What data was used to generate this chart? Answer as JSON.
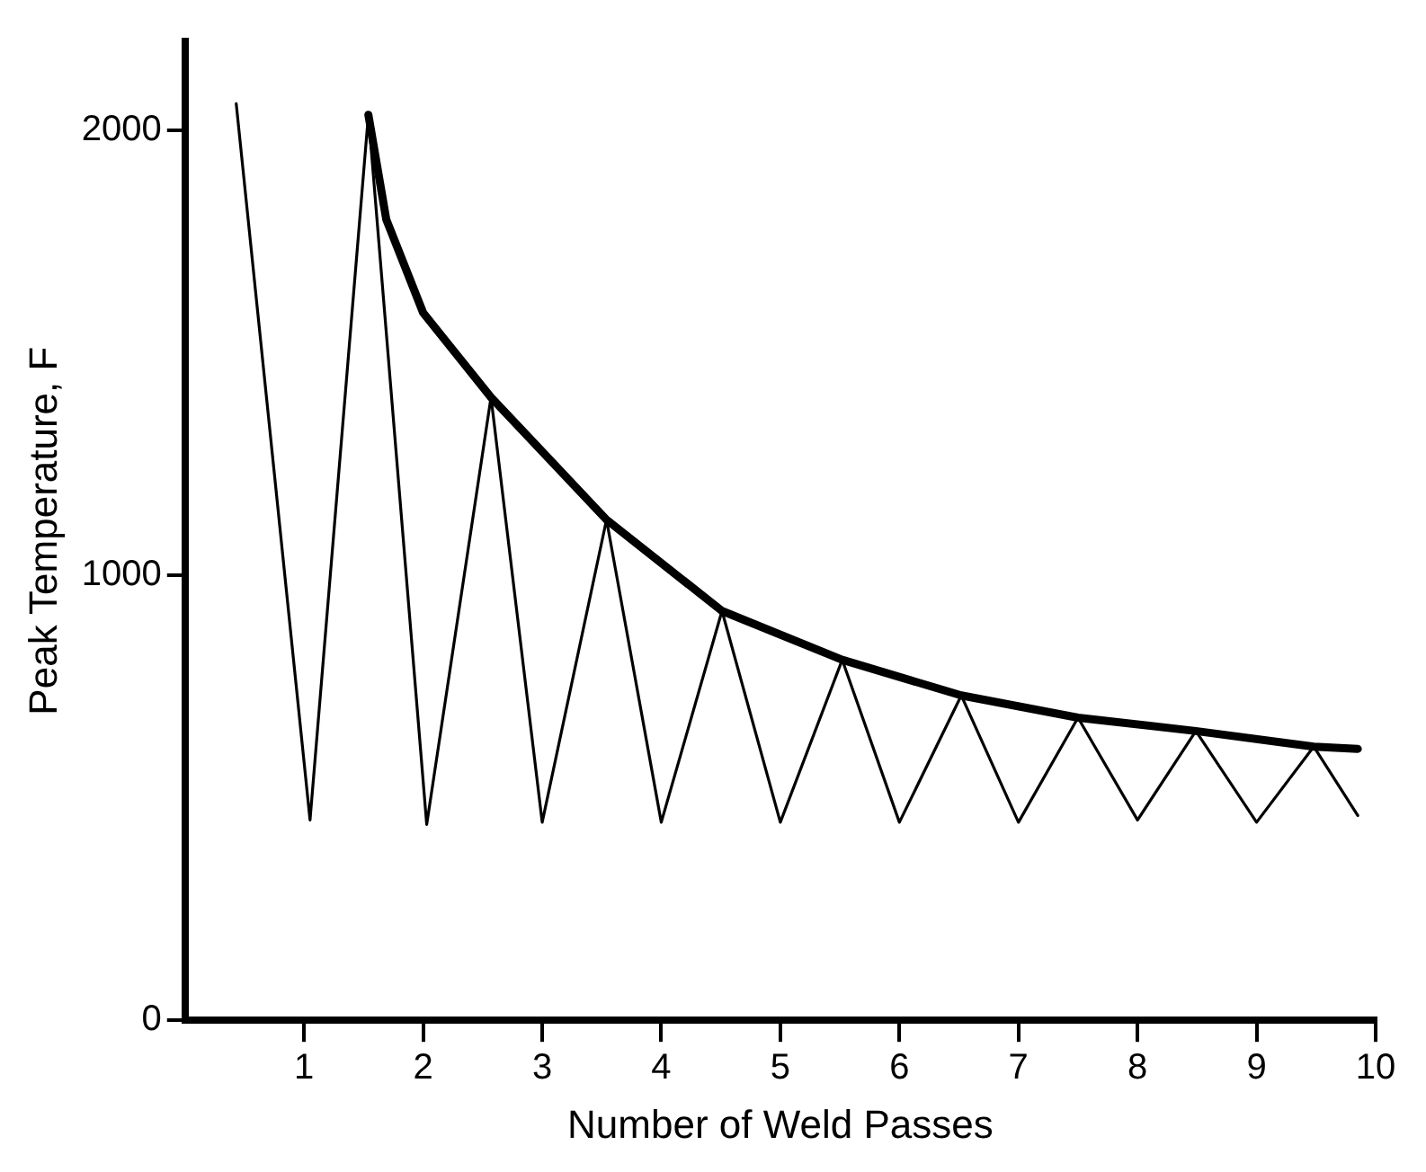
{
  "chart_data": {
    "type": "line",
    "xlabel": "Number of Weld Passes",
    "ylabel": "Peak Temperature, F",
    "xlim": [
      0,
      10
    ],
    "xticks": [
      1,
      2,
      3,
      4,
      5,
      6,
      7,
      8,
      9,
      10
    ],
    "ylim": [
      0,
      2200
    ],
    "yticks": [
      0,
      1000,
      2000
    ],
    "grid": false,
    "legend": false,
    "marker": "none",
    "line_style": "solid",
    "series": [
      {
        "color": "#000000",
        "x": [
          0.43,
          1.05,
          1.54,
          2.03,
          2.57,
          3.0,
          3.54,
          4.0,
          4.51,
          5.0,
          5.52,
          6.0,
          6.52,
          7.0,
          7.5,
          8.0,
          8.49,
          9.0,
          9.48,
          9.85
        ],
        "values": [
          2060,
          450,
          2035,
          440,
          1400,
          445,
          1125,
          445,
          920,
          445,
          810,
          445,
          730,
          445,
          680,
          450,
          650,
          445,
          615,
          460
        ]
      },
      {
        "color": "#000000",
        "x": [
          1.54,
          1.69,
          2.0,
          2.57,
          3.54,
          4.51,
          5.52,
          6.52,
          7.5,
          8.49,
          9.48,
          9.85
        ],
        "values": [
          2035,
          1800,
          1590,
          1400,
          1125,
          920,
          810,
          730,
          680,
          650,
          615,
          610
        ]
      }
    ]
  }
}
